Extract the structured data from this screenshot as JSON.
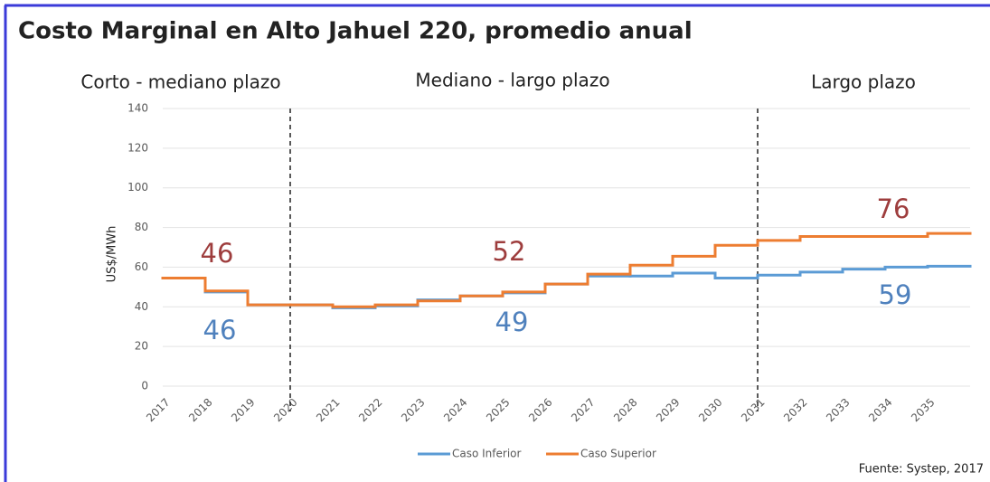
{
  "chart_data": {
    "type": "step-line",
    "title": "Costo Marginal en Alto Jahuel 220, promedio anual",
    "sections": [
      "Corto - mediano plazo",
      "Mediano - largo plazo",
      "Largo plazo"
    ],
    "dividers": [
      2020,
      2031
    ],
    "y_label": "US$/MWh",
    "x": [
      2017,
      2018,
      2019,
      2020,
      2021,
      2022,
      2023,
      2024,
      2025,
      2026,
      2027,
      2028,
      2029,
      2030,
      2031,
      2032,
      2033,
      2034,
      2035
    ],
    "xlim": [
      2017,
      2036
    ],
    "ylim": [
      0,
      140
    ],
    "yticks": [
      0,
      20,
      40,
      60,
      80,
      100,
      120,
      140
    ],
    "grid": true,
    "series": [
      {
        "name": "Caso Inferior",
        "color": "#5b9bd5",
        "values": [
          54.5,
          47.5,
          41,
          41,
          39.5,
          40.5,
          43.5,
          45.5,
          47,
          51.5,
          55.5,
          55.5,
          57,
          54.5,
          56,
          57.5,
          59,
          60,
          60.5
        ]
      },
      {
        "name": "Caso Superior",
        "color": "#ed7d31",
        "values": [
          54.5,
          48,
          41,
          41,
          40,
          41,
          43,
          45.5,
          47.5,
          51.5,
          56.5,
          61,
          65.5,
          71,
          73.5,
          75.5,
          75.5,
          75.5,
          77
        ]
      }
    ],
    "annotations": [
      {
        "label": "46",
        "color": "#9e3d3d"
      },
      {
        "label": "46",
        "color": "#4f81bd"
      },
      {
        "label": "52",
        "color": "#9e3d3d"
      },
      {
        "label": "49",
        "color": "#4f81bd"
      },
      {
        "label": "76",
        "color": "#9e3d3d"
      },
      {
        "label": "59",
        "color": "#4f81bd"
      }
    ],
    "source": "Fuente: Systep, 2017"
  }
}
